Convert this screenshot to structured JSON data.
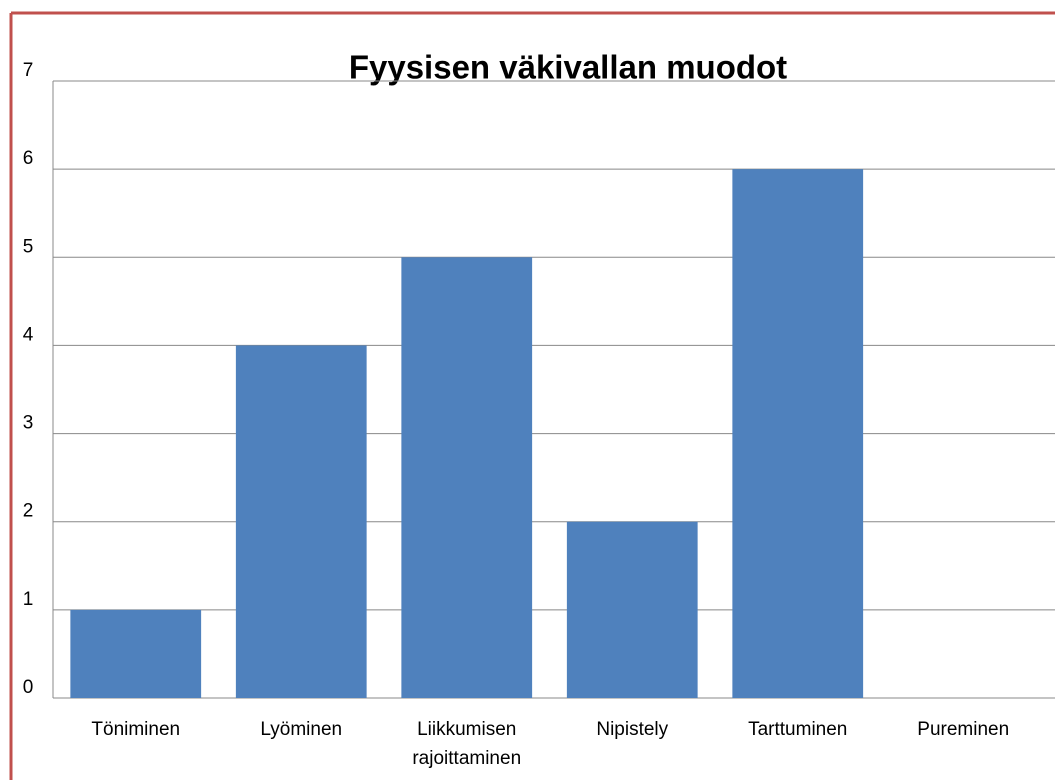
{
  "chart_data": {
    "type": "bar",
    "title": "Fyysisen väkivallan muodot",
    "categories": [
      "Töniminen",
      "Lyöminen",
      "Liikkumisen rajoittaminen",
      "Nipistely",
      "Tarttuminen",
      "Pureminen"
    ],
    "values": [
      1,
      4,
      5,
      2,
      6,
      0
    ],
    "color": "#4f81bd",
    "ylim": [
      0,
      7
    ],
    "yticks": [
      0,
      1,
      2,
      3,
      4,
      5,
      6,
      7
    ],
    "grid": true
  }
}
